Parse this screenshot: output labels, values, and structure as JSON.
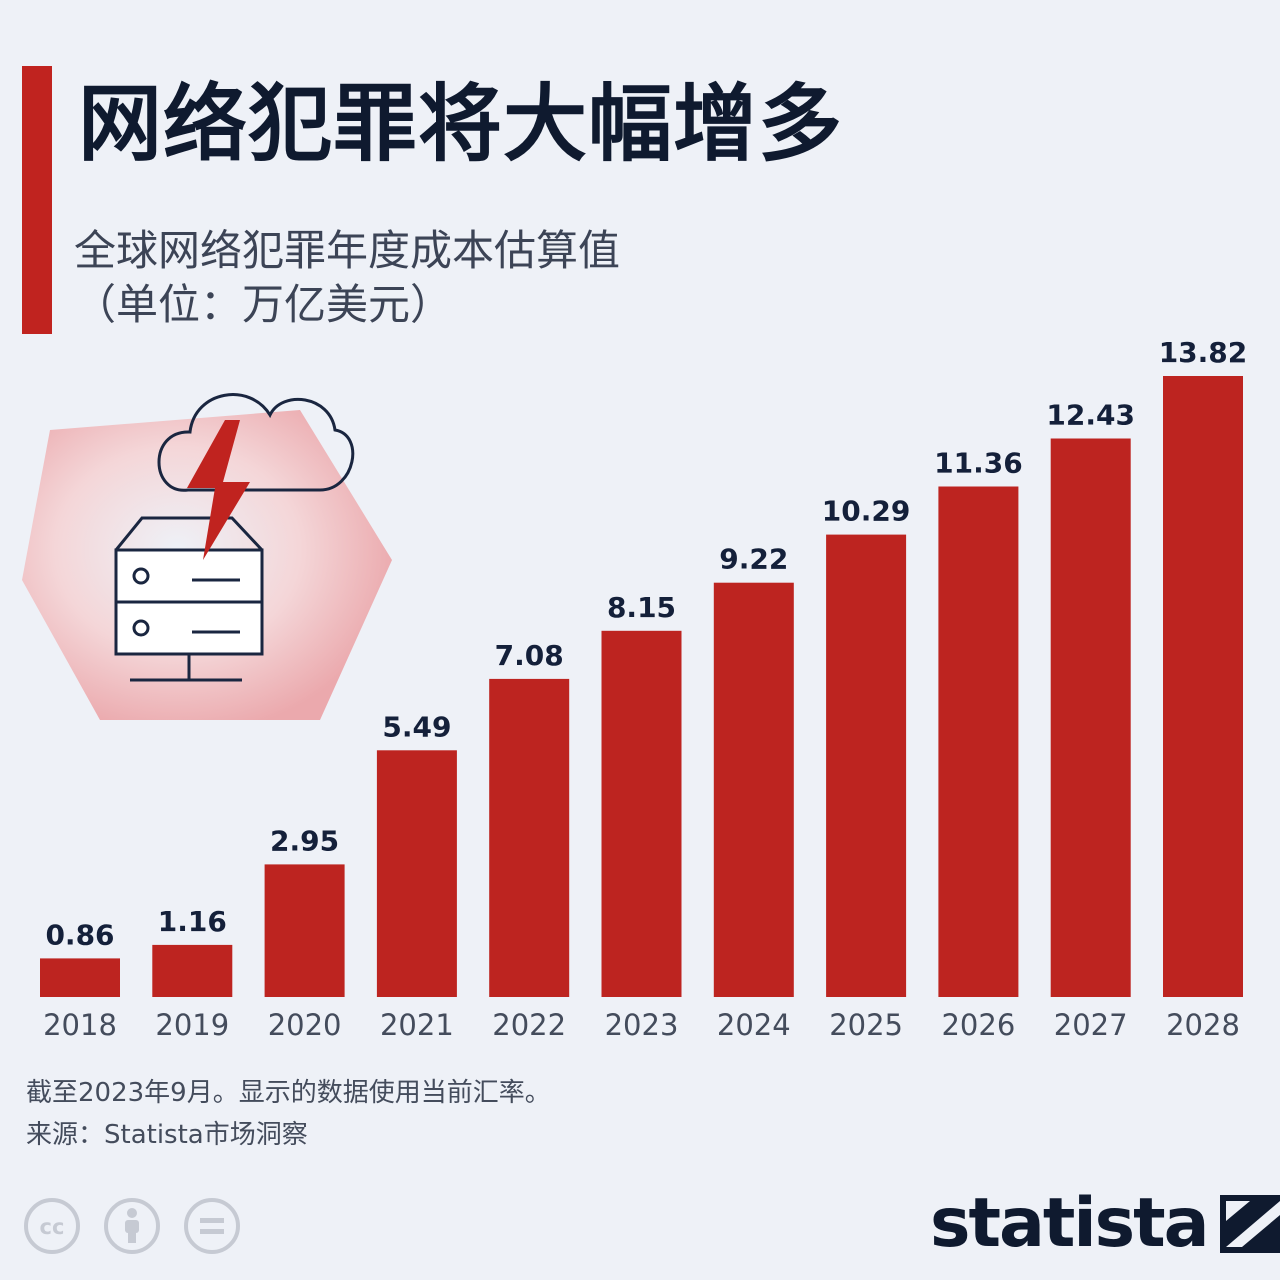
{
  "header": {
    "title": "网络犯罪将大幅增多",
    "subtitle_line1": "全球网络犯罪年度成本估算值",
    "subtitle_line2": "（单位：万亿美元）"
  },
  "colors": {
    "accent": "#c0231f",
    "bar": "#bd2420",
    "background": "#eef1f7",
    "title_text": "#0f1a2f"
  },
  "illustration": {
    "icon": "cloud-lightning-server-icon"
  },
  "chart_data": {
    "type": "bar",
    "title": "网络犯罪将大幅增多",
    "subtitle": "全球网络犯罪年度成本估算值（单位：万亿美元）",
    "categories": [
      "2018",
      "2019",
      "2020",
      "2021",
      "2022",
      "2023",
      "2024",
      "2025",
      "2026",
      "2027",
      "2028"
    ],
    "values": [
      0.86,
      1.16,
      2.95,
      5.49,
      7.08,
      8.15,
      9.22,
      10.29,
      11.36,
      12.43,
      13.82
    ],
    "value_labels": [
      "0.86",
      "1.16",
      "2.95",
      "5.49",
      "7.08",
      "8.15",
      "9.22",
      "10.29",
      "11.36",
      "12.43",
      "13.82"
    ],
    "ylim": [
      0,
      13.82
    ],
    "grid": false,
    "legend": "none",
    "data_labels": "above bars"
  },
  "footer": {
    "note": "截至2023年9月。显示的数据使用当前汇率。",
    "source": "来源：Statista市场洞察",
    "license_icons": [
      "cc-icon",
      "by-person-icon",
      "nd-equals-icon"
    ],
    "logo_text": "statista",
    "logo_icon": "statista-logo-icon"
  }
}
